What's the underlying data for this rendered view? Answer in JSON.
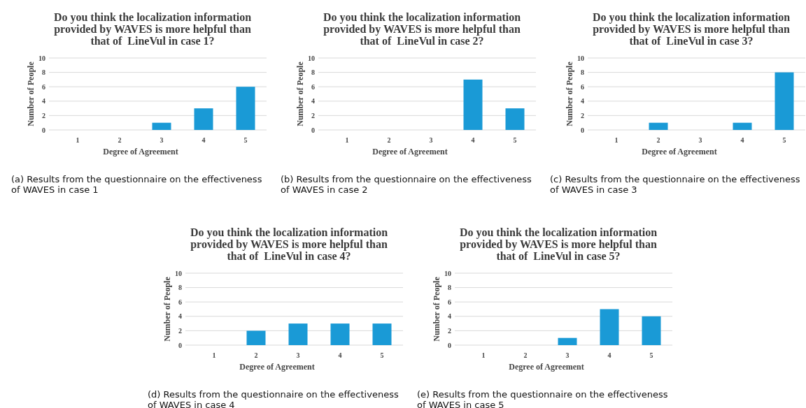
{
  "chart_data": [
    {
      "type": "bar",
      "title": "Do you think the localization information provided by WAVES is more helpful than that of  LineVul in case 1?",
      "categories": [
        "1",
        "2",
        "3",
        "4",
        "5"
      ],
      "values": [
        0,
        0,
        1,
        3,
        6
      ],
      "color": "#1a9ad6",
      "xlabel": "Degree of Agreement",
      "ylabel": "Number of People",
      "ylim": [
        0,
        10
      ],
      "yticks": [
        0,
        2,
        4,
        6,
        8,
        10
      ],
      "grid": "y",
      "annotations": [
        "(a) Results from the questionnaire on the effectiveness of WAVES in case 1"
      ]
    },
    {
      "type": "bar",
      "title": "Do you think the localization information provided by WAVES is more helpful than that of  LineVul in case 2?",
      "categories": [
        "1",
        "2",
        "3",
        "4",
        "5"
      ],
      "values": [
        0,
        0,
        0,
        7,
        3
      ],
      "color": "#1a9ad6",
      "xlabel": "Degree of Agreement",
      "ylabel": "Number of People",
      "ylim": [
        0,
        10
      ],
      "yticks": [
        0,
        2,
        4,
        6,
        8,
        10
      ],
      "grid": "y",
      "annotations": [
        "(b) Results from the questionnaire on the effectiveness of WAVES in case 2"
      ]
    },
    {
      "type": "bar",
      "title": "Do you think the localization information provided by WAVES is more helpful than that of  LineVul in case 3?",
      "categories": [
        "1",
        "2",
        "3",
        "4",
        "5"
      ],
      "values": [
        0,
        1,
        0,
        1,
        8
      ],
      "color": "#1a9ad6",
      "xlabel": "Degree of Agreement",
      "ylabel": "Number of People",
      "ylim": [
        0,
        10
      ],
      "yticks": [
        0,
        2,
        4,
        6,
        8,
        10
      ],
      "grid": "y",
      "annotations": [
        "(c) Results from the questionnaire on the effectiveness of WAVES in case 3"
      ]
    },
    {
      "type": "bar",
      "title": "Do you think the localization information provided by WAVES is more helpful than that of  LineVul in case 4?",
      "categories": [
        "1",
        "2",
        "3",
        "4",
        "5"
      ],
      "values": [
        0,
        2,
        3,
        3,
        3
      ],
      "color": "#1a9ad6",
      "xlabel": "Degree of Agreement",
      "ylabel": "Number of People",
      "ylim": [
        0,
        10
      ],
      "yticks": [
        0,
        2,
        4,
        6,
        8,
        10
      ],
      "grid": "y",
      "annotations": [
        "(d) Results from the questionnaire on the effectiveness of WAVES in case 4"
      ]
    },
    {
      "type": "bar",
      "title": "Do you think the localization information provided by WAVES is more helpful than that of  LineVul in case 5?",
      "categories": [
        "1",
        "2",
        "3",
        "4",
        "5"
      ],
      "values": [
        0,
        0,
        1,
        5,
        4
      ],
      "color": "#1a9ad6",
      "xlabel": "Degree of Agreement",
      "ylabel": "Number of People",
      "ylim": [
        0,
        10
      ],
      "yticks": [
        0,
        2,
        4,
        6,
        8,
        10
      ],
      "grid": "y",
      "annotations": [
        "(e) Results from the questionnaire on the effectiveness of WAVES in case 5"
      ]
    }
  ]
}
